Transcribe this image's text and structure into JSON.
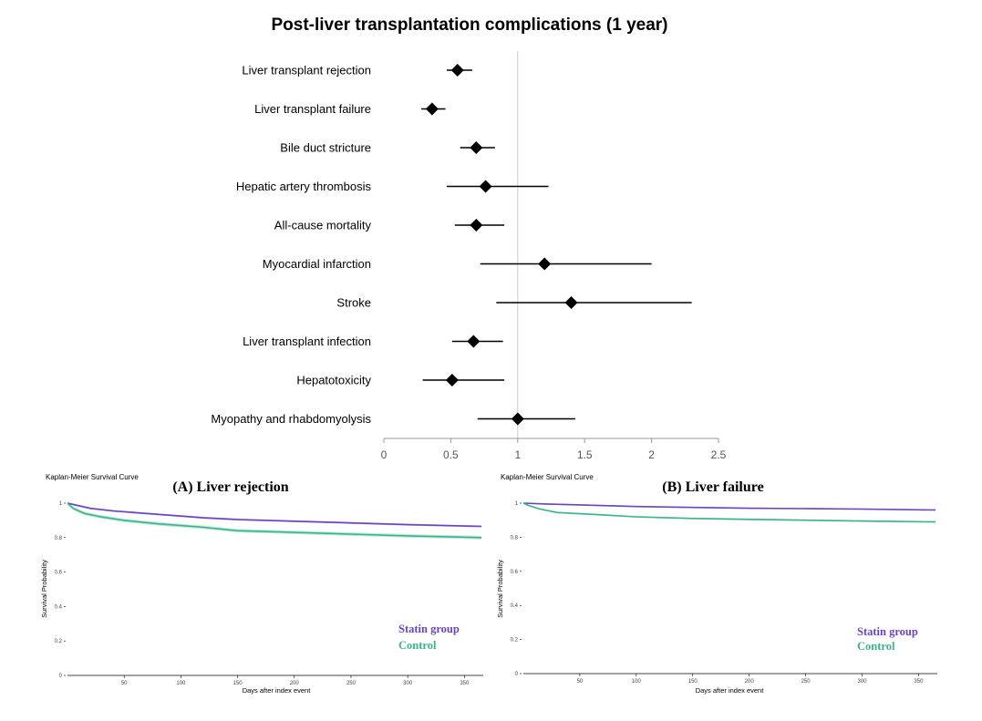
{
  "colors": {
    "statin": "#6a45c0",
    "statin_band": "#c7b8e8",
    "control": "#3cb58e",
    "control_band": "#a8e0cc",
    "marker": "#000000",
    "refline": "#cccccc"
  },
  "chart_data": [
    {
      "type": "forest",
      "title": "Post-liver transplantation complications (1 year)",
      "xlim": [
        0,
        2.5
      ],
      "x_ticks": [
        "0",
        "0.5",
        "1",
        "1.5",
        "2",
        "2.5"
      ],
      "reference_line": 1,
      "rows": [
        {
          "label": "Liver transplant rejection",
          "estimate": 0.55,
          "lower": 0.47,
          "upper": 0.66
        },
        {
          "label": "Liver transplant failure",
          "estimate": 0.36,
          "lower": 0.28,
          "upper": 0.46
        },
        {
          "label": "Bile duct stricture",
          "estimate": 0.69,
          "lower": 0.57,
          "upper": 0.83
        },
        {
          "label": "Hepatic artery thrombosis",
          "estimate": 0.76,
          "lower": 0.47,
          "upper": 1.23
        },
        {
          "label": "All-cause mortality",
          "estimate": 0.69,
          "lower": 0.53,
          "upper": 0.9
        },
        {
          "label": "Myocardial infarction",
          "estimate": 1.2,
          "lower": 0.72,
          "upper": 2.0
        },
        {
          "label": "Stroke",
          "estimate": 1.4,
          "lower": 0.84,
          "upper": 2.3
        },
        {
          "label": "Liver transplant infection",
          "estimate": 0.67,
          "lower": 0.51,
          "upper": 0.89
        },
        {
          "label": "Hepatotoxicity",
          "estimate": 0.51,
          "lower": 0.29,
          "upper": 0.9
        },
        {
          "label": "Myopathy and rhabdomyolysis",
          "estimate": 1.0,
          "lower": 0.7,
          "upper": 1.43
        }
      ]
    },
    {
      "type": "line",
      "subtitle": "Kaplan-Meier Survival Curve",
      "title": "(A) Liver rejection",
      "xlabel": "Days after index event",
      "ylabel": "Survival Probability",
      "xlim": [
        0,
        365
      ],
      "ylim": [
        0,
        1
      ],
      "x_ticks": [
        "50",
        "100",
        "150",
        "200",
        "250",
        "300",
        "350"
      ],
      "y_ticks": [
        "0",
        "0.2",
        "0.4",
        "0.6",
        "0.8",
        "1"
      ],
      "legend": "bottom-right",
      "series": [
        {
          "name": "Statin group",
          "x": [
            0,
            10,
            20,
            40,
            60,
            80,
            100,
            120,
            150,
            200,
            250,
            300,
            365
          ],
          "y": [
            1.0,
            0.985,
            0.97,
            0.955,
            0.945,
            0.935,
            0.925,
            0.915,
            0.905,
            0.895,
            0.885,
            0.875,
            0.865
          ],
          "band": 0.006
        },
        {
          "name": "Control",
          "x": [
            0,
            5,
            15,
            30,
            50,
            80,
            100,
            120,
            150,
            200,
            250,
            300,
            365
          ],
          "y": [
            1.0,
            0.97,
            0.94,
            0.92,
            0.9,
            0.88,
            0.87,
            0.86,
            0.84,
            0.83,
            0.82,
            0.81,
            0.8
          ],
          "band": 0.01
        }
      ]
    },
    {
      "type": "line",
      "subtitle": "Kaplan-Meier Survival Curve",
      "title": "(B) Liver failure",
      "xlabel": "Days after index event",
      "ylabel": "Survival Probability",
      "xlim": [
        0,
        365
      ],
      "ylim": [
        0,
        1
      ],
      "x_ticks": [
        "50",
        "100",
        "150",
        "200",
        "250",
        "300",
        "350"
      ],
      "y_ticks": [
        "0",
        "0.2",
        "0.4",
        "0.6",
        "0.8",
        "1"
      ],
      "legend": "bottom-right",
      "series": [
        {
          "name": "Statin group",
          "x": [
            0,
            20,
            50,
            100,
            150,
            200,
            250,
            300,
            365
          ],
          "y": [
            1.0,
            0.995,
            0.99,
            0.98,
            0.975,
            0.97,
            0.968,
            0.965,
            0.96
          ],
          "band": 0.004
        },
        {
          "name": "Control",
          "x": [
            0,
            5,
            15,
            30,
            60,
            100,
            150,
            200,
            250,
            300,
            365
          ],
          "y": [
            1.0,
            0.985,
            0.965,
            0.945,
            0.935,
            0.92,
            0.91,
            0.905,
            0.9,
            0.895,
            0.89
          ],
          "band": 0.005
        }
      ]
    }
  ]
}
